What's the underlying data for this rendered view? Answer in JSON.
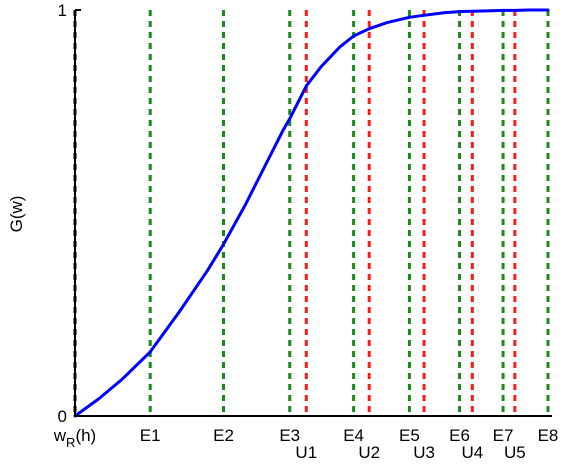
{
  "chart_data": {
    "type": "line",
    "title": "",
    "xlabel": "",
    "ylabel": "G(w)",
    "ylim": [
      0,
      1
    ],
    "yticks": [
      {
        "value": 0,
        "label": "0"
      },
      {
        "value": 1,
        "label": "1"
      }
    ],
    "xlim": [
      0,
      1
    ],
    "grid": false,
    "vertical_lines": [
      {
        "name": "w_R(h)",
        "x": 0.0,
        "color": "#000000",
        "label_row": 0
      },
      {
        "name": "E1",
        "x": 0.159,
        "color": "#1a8a1a",
        "label_row": 0
      },
      {
        "name": "E2",
        "x": 0.314,
        "color": "#1a8a1a",
        "label_row": 0
      },
      {
        "name": "E3",
        "x": 0.454,
        "color": "#1a8a1a",
        "label_row": 0
      },
      {
        "name": "U1",
        "x": 0.489,
        "color": "#ff1a1a",
        "label_row": 1
      },
      {
        "name": "E4",
        "x": 0.589,
        "color": "#1a8a1a",
        "label_row": 0
      },
      {
        "name": "U2",
        "x": 0.622,
        "color": "#ff1a1a",
        "label_row": 1
      },
      {
        "name": "E5",
        "x": 0.707,
        "color": "#1a8a1a",
        "label_row": 0
      },
      {
        "name": "U3",
        "x": 0.738,
        "color": "#ff1a1a",
        "label_row": 1
      },
      {
        "name": "E6",
        "x": 0.813,
        "color": "#1a8a1a",
        "label_row": 0
      },
      {
        "name": "U4",
        "x": 0.84,
        "color": "#ff1a1a",
        "label_row": 1
      },
      {
        "name": "E7",
        "x": 0.905,
        "color": "#1a8a1a",
        "label_row": 0
      },
      {
        "name": "U5",
        "x": 0.93,
        "color": "#ff1a1a",
        "label_row": 1
      },
      {
        "name": "E8",
        "x": 1.0,
        "color": "#1a8a1a",
        "label_row": 0
      }
    ],
    "series": [
      {
        "color": "#0000ff",
        "x": [
          0.0,
          0.05,
          0.1,
          0.159,
          0.22,
          0.28,
          0.314,
          0.36,
          0.4,
          0.44,
          0.454,
          0.489,
          0.52,
          0.56,
          0.589,
          0.622,
          0.66,
          0.707,
          0.738,
          0.78,
          0.813,
          0.84,
          0.88,
          0.905,
          0.93,
          0.96,
          1.0
        ],
        "y": [
          0.0,
          0.042,
          0.091,
          0.158,
          0.256,
          0.358,
          0.423,
          0.52,
          0.612,
          0.704,
          0.732,
          0.813,
          0.86,
          0.909,
          0.936,
          0.954,
          0.969,
          0.982,
          0.987,
          0.993,
          0.996,
          0.997,
          0.998,
          0.999,
          0.999,
          1.0,
          1.0
        ]
      }
    ]
  }
}
